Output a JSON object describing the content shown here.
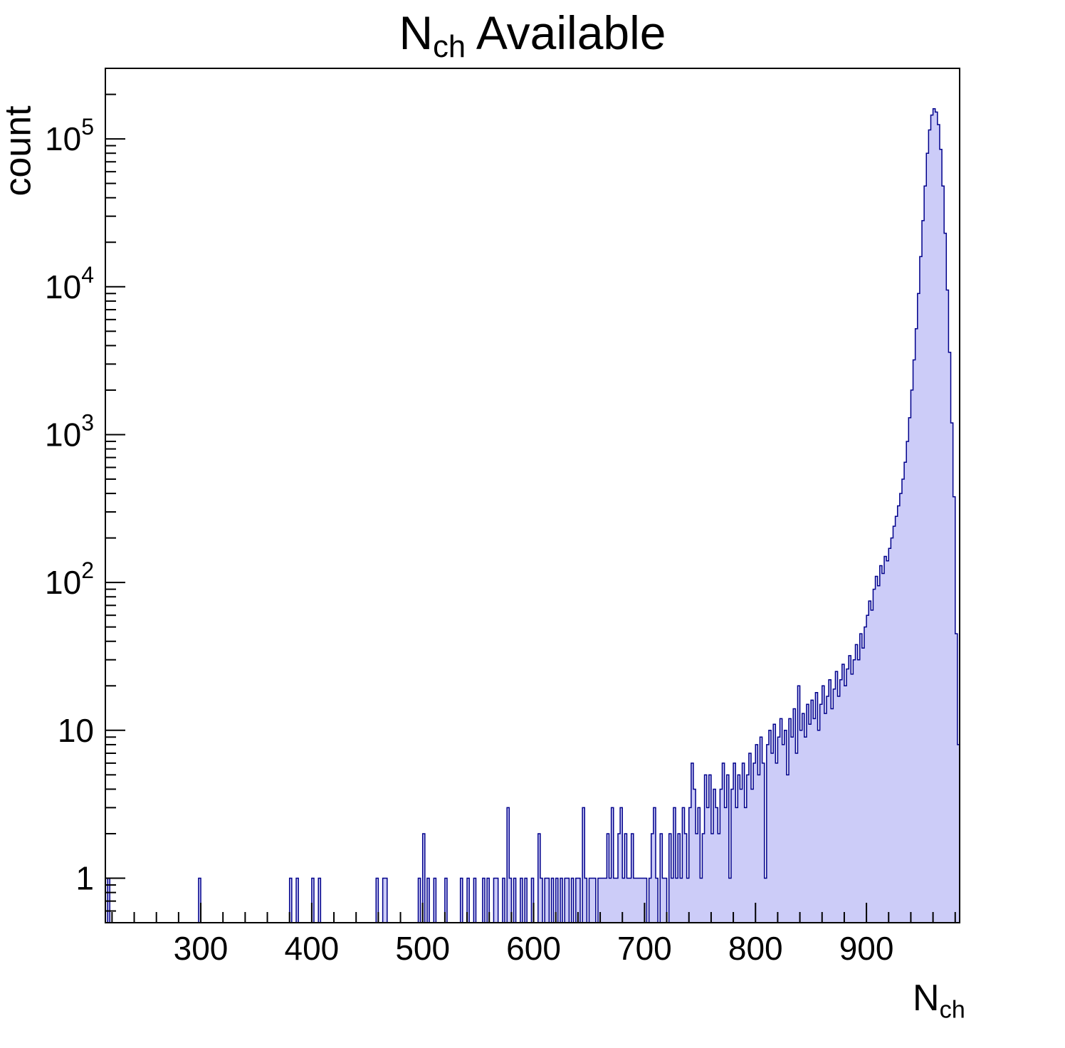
{
  "title": {
    "prefix": "N",
    "subscript": "ch",
    "suffix": " Available"
  },
  "y_axis": {
    "label": "count"
  },
  "x_axis": {
    "label_prefix": "N",
    "label_subscript": "ch"
  },
  "chart_data": {
    "type": "bar",
    "title": "N_ch Available",
    "xlabel": "N_ch",
    "ylabel": "count",
    "y_scale": "log",
    "x_range": [
      214,
      984
    ],
    "y_range": [
      0.5,
      300000
    ],
    "x_ticks": [
      300,
      400,
      500,
      600,
      700,
      800,
      900
    ],
    "x_minor_step": 20,
    "y_ticks": [
      1,
      10,
      100,
      1000,
      10000,
      100000
    ],
    "grid": false,
    "legend": "none",
    "bin_width": 2,
    "fill_color": "#ccccf8",
    "line_color": "#00008b",
    "frame_color": "#000000",
    "sparse_bins": [
      [
        216,
        1
      ],
      [
        298,
        1
      ],
      [
        380,
        1
      ],
      [
        386,
        1
      ],
      [
        400,
        1
      ],
      [
        406,
        1
      ],
      [
        458,
        1
      ],
      [
        464,
        1
      ],
      [
        466,
        1
      ],
      [
        496,
        1
      ],
      [
        500,
        2
      ],
      [
        504,
        1
      ],
      [
        510,
        1
      ],
      [
        520,
        1
      ],
      [
        534,
        1
      ],
      [
        540,
        1
      ],
      [
        546,
        1
      ],
      [
        554,
        1
      ],
      [
        558,
        1
      ],
      [
        564,
        1
      ],
      [
        566,
        1
      ],
      [
        572,
        1
      ],
      [
        576,
        3
      ],
      [
        578,
        1
      ],
      [
        582,
        1
      ],
      [
        588,
        1
      ],
      [
        592,
        1
      ],
      [
        598,
        1
      ],
      [
        604,
        2
      ],
      [
        606,
        1
      ],
      [
        610,
        1
      ],
      [
        612,
        1
      ],
      [
        616,
        1
      ],
      [
        620,
        1
      ],
      [
        624,
        1
      ],
      [
        628,
        1
      ],
      [
        630,
        1
      ],
      [
        634,
        1
      ],
      [
        638,
        1
      ],
      [
        640,
        1
      ],
      [
        644,
        3
      ],
      [
        646,
        1
      ],
      [
        650,
        1
      ],
      [
        652,
        1
      ],
      [
        654,
        1
      ],
      [
        658,
        1
      ],
      [
        660,
        1
      ],
      [
        662,
        1
      ],
      [
        664,
        1
      ],
      [
        666,
        2
      ],
      [
        668,
        1
      ],
      [
        670,
        3
      ],
      [
        672,
        1
      ],
      [
        674,
        1
      ],
      [
        676,
        2
      ],
      [
        678,
        3
      ],
      [
        680,
        1
      ],
      [
        682,
        2
      ],
      [
        684,
        1
      ],
      [
        686,
        1
      ],
      [
        688,
        2
      ],
      [
        690,
        1
      ],
      [
        692,
        1
      ],
      [
        694,
        1
      ],
      [
        696,
        1
      ],
      [
        698,
        1
      ]
    ],
    "dense_start": 700,
    "dense_bins": [
      1,
      0,
      1,
      2,
      3,
      1,
      0,
      2,
      1,
      1,
      0,
      2,
      1,
      3,
      1,
      2,
      1,
      3,
      2,
      1,
      3,
      6,
      4,
      2,
      3,
      1,
      2,
      5,
      3,
      5,
      2,
      4,
      3,
      2,
      4,
      6,
      3,
      5,
      1,
      4,
      6,
      3,
      5,
      4,
      6,
      3,
      5,
      7,
      4,
      6,
      8,
      5,
      9,
      6,
      1,
      8,
      10,
      7,
      11,
      6,
      9,
      12,
      8,
      10,
      5,
      12,
      9,
      14,
      7,
      20,
      10,
      13,
      9,
      15,
      11,
      16,
      12,
      18,
      10,
      15,
      20,
      13,
      17,
      22,
      14,
      19,
      25,
      17,
      22,
      28,
      20,
      26,
      32,
      24,
      30,
      38,
      30,
      45,
      36,
      50,
      60,
      75,
      65,
      90,
      110,
      95,
      130,
      115,
      150,
      140,
      170,
      200,
      240,
      280,
      330,
      400,
      500,
      650,
      900,
      1300,
      2000,
      3200,
      5200,
      9000,
      16000,
      28000,
      48000,
      80000,
      115000,
      145000,
      160000,
      152000,
      125000,
      85000,
      48000,
      23000,
      9500,
      3600,
      1200,
      380,
      45,
      8
    ]
  }
}
